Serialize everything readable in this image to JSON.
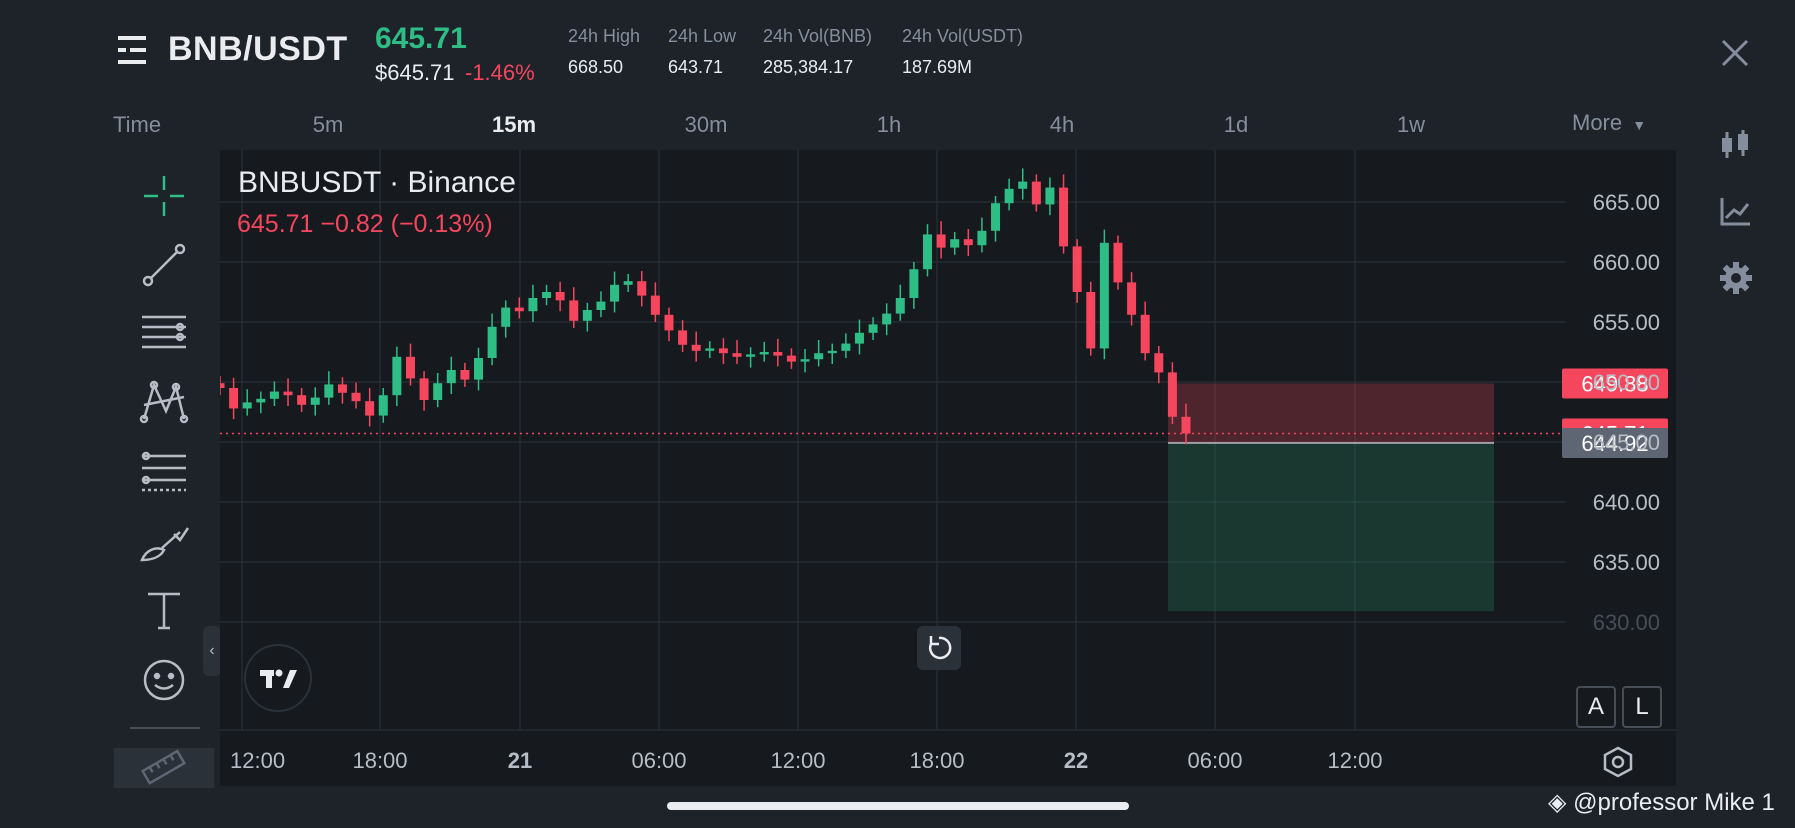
{
  "header": {
    "pair": "BNB/USDT",
    "last_price": "645.71",
    "usd_price": "$645.71",
    "change_pct": "-1.46%",
    "stats": [
      {
        "label": "24h High",
        "value": "668.50"
      },
      {
        "label": "24h Low",
        "value": "643.71"
      },
      {
        "label": "24h Vol(BNB)",
        "value": "285,384.17"
      },
      {
        "label": "24h Vol(USDT)",
        "value": "187.69M"
      }
    ]
  },
  "timeframes": {
    "label": "Time",
    "items": [
      "5m",
      "15m",
      "30m",
      "1h",
      "4h",
      "1d",
      "1w"
    ],
    "active": "15m",
    "more": "More"
  },
  "chart": {
    "symbol": "BNBUSDT · Binance",
    "price_line": "645.71  −0.82 (−0.13%)",
    "y_ticks": [
      "665.00",
      "660.00",
      "655.00",
      "650.00",
      "645.00",
      "640.00",
      "635.00",
      "630.00"
    ],
    "x_ticks": [
      "12:00",
      "18:00",
      "21",
      "06:00",
      "12:00",
      "18:00",
      "22",
      "06:00",
      "12:00"
    ],
    "badges": {
      "stop": "649.88",
      "current": "645.71",
      "entry": "644.92"
    },
    "axis_buttons": [
      "A",
      "L"
    ]
  },
  "chart_data": {
    "type": "candlestick",
    "symbol": "BNBUSDT",
    "ylim": [
      628,
      668
    ],
    "close_series": [
      649.5,
      647.8,
      648.3,
      648.6,
      649.2,
      648.9,
      648.1,
      648.7,
      649.8,
      649.1,
      648.4,
      647.2,
      648.9,
      652.1,
      650.3,
      648.5,
      649.9,
      651.0,
      650.2,
      652.0,
      654.6,
      656.2,
      655.9,
      657.0,
      657.5,
      656.8,
      655.1,
      656.0,
      656.7,
      658.1,
      658.4,
      657.2,
      655.6,
      654.3,
      653.1,
      652.6,
      652.8,
      652.4,
      652.1,
      652.3,
      652.5,
      652.2,
      651.7,
      651.9,
      652.4,
      652.6,
      653.2,
      654.1,
      654.8,
      655.7,
      657.0,
      659.4,
      662.3,
      661.2,
      661.9,
      661.4,
      662.6,
      664.9,
      666.1,
      666.7,
      664.8,
      666.2,
      661.3,
      657.5,
      652.8,
      661.6,
      658.3,
      655.6,
      652.4,
      650.8,
      647.1,
      645.71
    ],
    "stop_price": 649.88,
    "current_price": 645.71,
    "entry_price": 644.92,
    "position_box_bottom": 630.9
  },
  "watermark": "@professor Mike 1",
  "colors": {
    "up": "#2ebd85",
    "down": "#f6465d",
    "bg": "#1e2329",
    "chart_bg": "#161a1e"
  },
  "icons": {
    "menu": "list-menu-icon",
    "close": "close-icon",
    "candles": "candles-icon",
    "indicator": "indicator-icon",
    "settings": "gear-icon"
  }
}
